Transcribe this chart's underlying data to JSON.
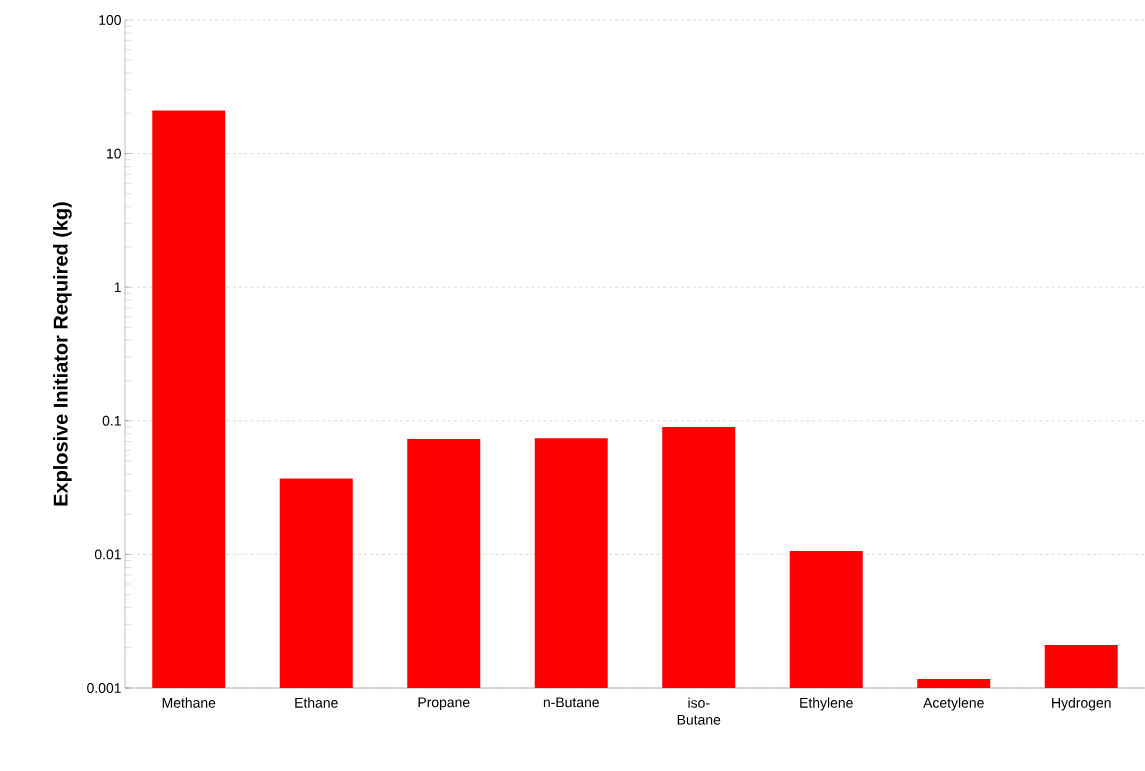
{
  "chart_data": {
    "type": "bar",
    "ylabel": "Explosive Initiator Required (kg)",
    "categories": [
      "Methane",
      "Ethane",
      "Propane",
      "n-Butane",
      "iso-Butane",
      "Ethylene",
      "Acetylene",
      "Hydrogen"
    ],
    "values": [
      21,
      0.037,
      0.073,
      0.074,
      0.09,
      0.0106,
      0.00117,
      0.0021
    ],
    "color": "#ff0000",
    "log": "y",
    "ylim": [
      0.001,
      100
    ],
    "yticks": [
      0.001,
      0.01,
      0.1,
      1,
      10,
      100
    ],
    "grid": "y"
  }
}
